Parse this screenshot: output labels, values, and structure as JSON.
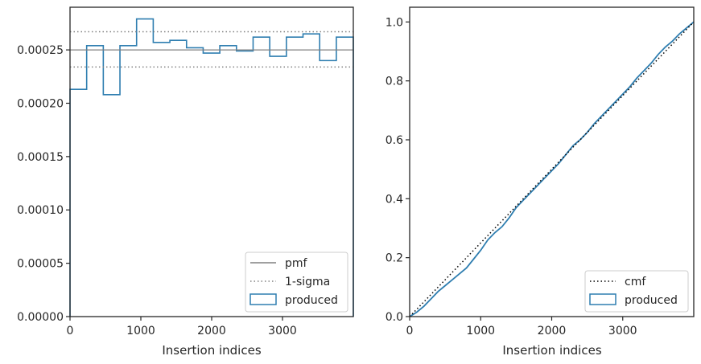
{
  "chart_data": [
    {
      "type": "step",
      "xlabel": "Insertion indices",
      "ylabel": "",
      "xlim": [
        0,
        4000
      ],
      "ylim": [
        0,
        0.00029
      ],
      "xticks": [
        0,
        1000,
        2000,
        3000
      ],
      "xtick_labels": [
        "0",
        "1000",
        "2000",
        "3000"
      ],
      "yticks": [
        0,
        5e-05,
        0.0001,
        0.00015,
        0.0002,
        0.00025
      ],
      "ytick_labels": [
        "0.00000",
        "0.00005",
        "0.00010",
        "0.00015",
        "0.00020",
        "0.00025"
      ],
      "grid": false,
      "legend_position": "lower-right",
      "legend": [
        "pmf",
        "1-sigma",
        "produced"
      ],
      "pmf": 0.00025,
      "sigma_bounds": [
        0.000234,
        0.000267
      ],
      "series": [
        {
          "name": "produced",
          "bin_edges": [
            0,
            235,
            470,
            705,
            940,
            1175,
            1410,
            1645,
            1880,
            2115,
            2350,
            2585,
            2820,
            3055,
            3290,
            3525,
            3760,
            4000
          ],
          "values": [
            0.000213,
            0.000254,
            0.000208,
            0.000254,
            0.000279,
            0.000257,
            0.000259,
            0.000252,
            0.000247,
            0.000254,
            0.000249,
            0.000262,
            0.000244,
            0.000262,
            0.000265,
            0.00024,
            0.000262
          ]
        }
      ],
      "colors": {
        "produced": "#2f7eb0",
        "pmf": "#808080",
        "sigma": "#808080"
      }
    },
    {
      "type": "line",
      "xlabel": "Insertion indices",
      "ylabel": "",
      "xlim": [
        0,
        4000
      ],
      "ylim": [
        0,
        1.05
      ],
      "xticks": [
        0,
        1000,
        2000,
        3000
      ],
      "xtick_labels": [
        "0",
        "1000",
        "2000",
        "3000"
      ],
      "yticks": [
        0,
        0.2,
        0.4,
        0.6,
        0.8,
        1.0
      ],
      "ytick_labels": [
        "0.0",
        "0.2",
        "0.4",
        "0.6",
        "0.8",
        "1.0"
      ],
      "grid": false,
      "legend_position": "lower-right",
      "legend": [
        "cmf",
        "produced"
      ],
      "series": [
        {
          "name": "cmf",
          "x": [
            0,
            4000
          ],
          "y": [
            0,
            1.0
          ]
        },
        {
          "name": "produced",
          "x": [
            0,
            100,
            200,
            300,
            400,
            500,
            600,
            700,
            800,
            900,
            1000,
            1100,
            1200,
            1300,
            1400,
            1500,
            1600,
            1700,
            1800,
            1900,
            2000,
            2100,
            2200,
            2300,
            2400,
            2500,
            2600,
            2700,
            2800,
            2900,
            3000,
            3100,
            3200,
            3300,
            3400,
            3500,
            3600,
            3700,
            3800,
            3900,
            4000
          ],
          "y": [
            0,
            0.015,
            0.035,
            0.06,
            0.085,
            0.105,
            0.125,
            0.145,
            0.165,
            0.195,
            0.225,
            0.26,
            0.285,
            0.305,
            0.335,
            0.37,
            0.395,
            0.42,
            0.445,
            0.47,
            0.495,
            0.52,
            0.55,
            0.58,
            0.6,
            0.625,
            0.655,
            0.68,
            0.705,
            0.73,
            0.755,
            0.78,
            0.81,
            0.835,
            0.86,
            0.89,
            0.915,
            0.935,
            0.96,
            0.98,
            1.0
          ]
        }
      ],
      "colors": {
        "produced": "#2f7eb0",
        "cmf": "#000000"
      }
    }
  ]
}
